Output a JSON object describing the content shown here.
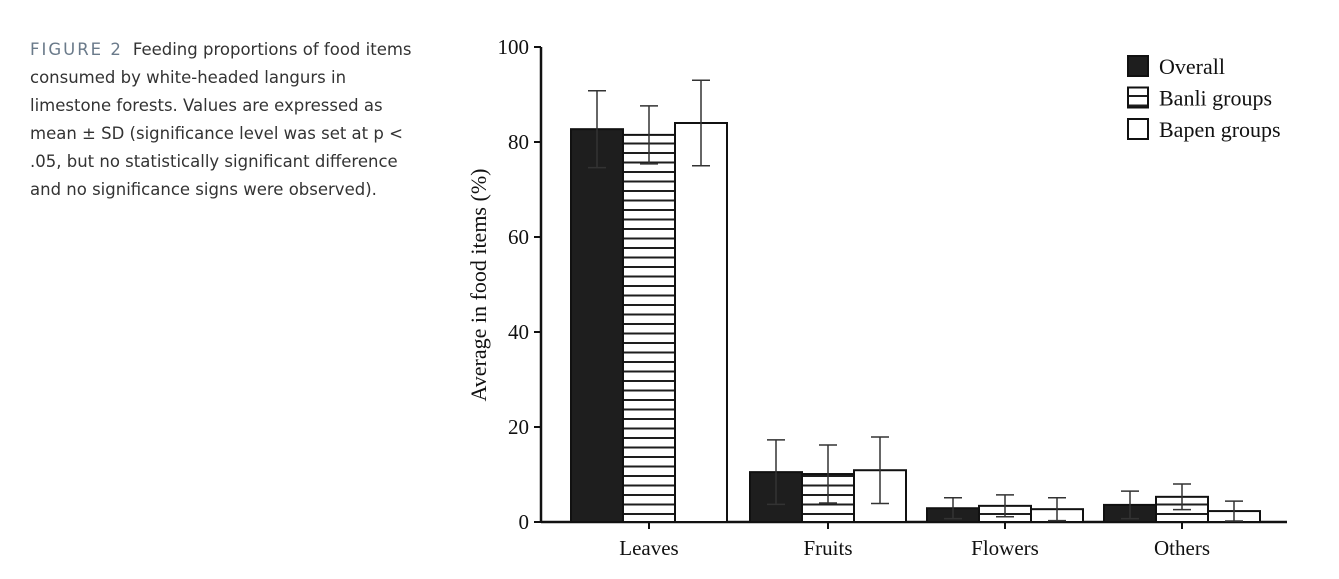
{
  "caption": {
    "label": "FIGURE 2",
    "text": "Feeding proportions of food items consumed by white-headed langurs in limestone forests. Values are expressed as mean ± SD (significance level was set at p < .05, but no statistically significant difference and no significance signs were observed)."
  },
  "chart_data": {
    "type": "bar",
    "title": "",
    "xlabel": "",
    "ylabel": "Average in food items (%)",
    "ylim": [
      0,
      100
    ],
    "yticks": [
      0,
      20,
      40,
      60,
      80,
      100
    ],
    "categories": [
      "Leaves",
      "Fruits",
      "Flowers",
      "Others"
    ],
    "legend_position": "top-right",
    "series": [
      {
        "name": "Overall",
        "fill": "solid",
        "color": "#1e1e1e",
        "values": [
          82.7,
          10.5,
          2.9,
          3.6
        ],
        "sd": [
          8.1,
          6.8,
          2.2,
          2.9
        ]
      },
      {
        "name": "Banli groups",
        "fill": "striped",
        "color": "#ffffff",
        "values": [
          81.5,
          10.1,
          3.4,
          5.3
        ],
        "sd": [
          6.1,
          6.1,
          2.3,
          2.7
        ]
      },
      {
        "name": "Bapen groups",
        "fill": "open",
        "color": "#ffffff",
        "values": [
          84.0,
          10.9,
          2.7,
          2.3
        ],
        "sd": [
          9.0,
          7.0,
          2.4,
          2.1
        ]
      }
    ]
  }
}
